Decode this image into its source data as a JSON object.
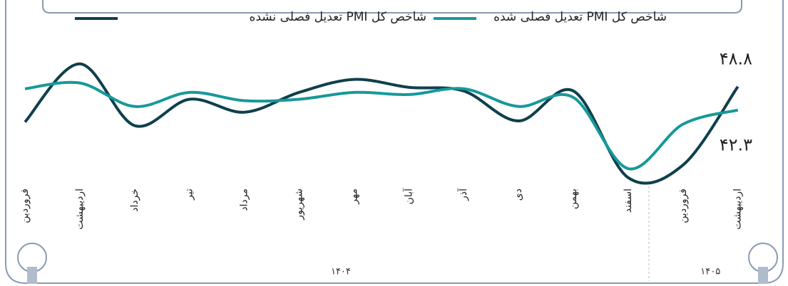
{
  "chart_data": {
    "type": "line",
    "categories": [
      "فروردین",
      "اردیبهشت",
      "خرداد",
      "تیر",
      "مرداد",
      "شهریور",
      "مهر",
      "آبان",
      "آذر",
      "دی",
      "بهمن",
      "اسفند",
      "فروردین",
      "اردیبهشت"
    ],
    "year_groups": [
      {
        "label": "۱۴۰۴",
        "from": 0,
        "to": 11
      },
      {
        "label": "۱۴۰۵",
        "from": 12,
        "to": 13
      }
    ],
    "series": [
      {
        "name": "تعدیل فصلی نشده PMI شاخص کل",
        "color": "#0f3f4c",
        "values": [
          39.0,
          55.1,
          38.0,
          45.3,
          41.7,
          47.2,
          50.8,
          48.6,
          47.6,
          39.3,
          47.6,
          23.6,
          27.1,
          48.8
        ]
      },
      {
        "name": "تعدیل فصلی شده PMI شاخص کل",
        "color": "#17999a",
        "values": [
          48.2,
          49.8,
          43.3,
          47.2,
          44.9,
          45.3,
          47.2,
          46.6,
          48.2,
          43.3,
          45.8,
          26.1,
          38.4,
          42.3
        ]
      }
    ],
    "annotations": [
      {
        "text": "۴۸.۸",
        "series": 0
      },
      {
        "text": "۴۲.۳",
        "series": 1
      }
    ],
    "ylim": [
      20,
      58
    ]
  }
}
